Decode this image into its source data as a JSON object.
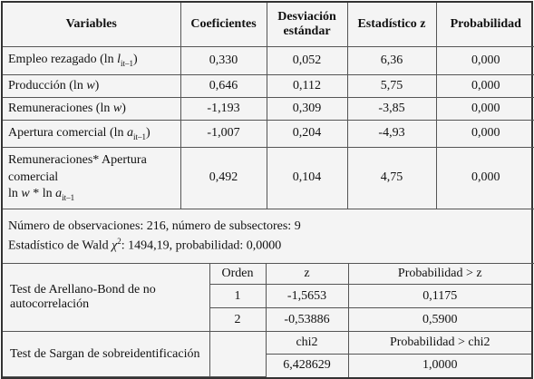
{
  "table": {
    "header": [
      "Variables",
      "Coeficientes",
      "Desviación estándar",
      "Estadístico z",
      "Probabilidad"
    ],
    "rows": [
      {
        "variable": [
          "Empleo rezagado (ln ",
          "l",
          "it–1",
          ")"
        ],
        "values": [
          "0,330",
          "0,052",
          "6,36",
          "0,000"
        ]
      },
      {
        "variable": [
          "Producción (ln ",
          "w",
          ")"
        ],
        "values": [
          "0,646",
          "0,112",
          "5,75",
          "0,000"
        ]
      },
      {
        "variable": [
          "Remuneraciones (ln ",
          "w",
          ")"
        ],
        "values": [
          "-1,193",
          "0,309",
          "-3,85",
          "0,000"
        ]
      },
      {
        "variable": [
          "Apertura comercial (ln ",
          "a",
          "it–1",
          ")"
        ],
        "values": [
          "-1,007",
          "0,204",
          "-4,93",
          "0,000"
        ]
      },
      {
        "variable": [
          "Remuneraciones* Apertura comercial",
          "ln ",
          "w",
          " * ln ",
          "a",
          "it–1"
        ],
        "values": [
          "0,492",
          "0,104",
          "4,75",
          "0,000"
        ]
      }
    ],
    "notes": {
      "observations": "Número de observaciones: 216, número de subsectores: 9",
      "wald": [
        "Estadístico de Wald ",
        "χ",
        "2",
        ": 1494,19, probabilidad: 0,0000"
      ]
    }
  },
  "arellano_bond": {
    "label": "Test de Arellano-Bond de no autocorrelación",
    "header": [
      "Orden",
      "z",
      "Probabilidad > z"
    ],
    "rows": [
      [
        "1",
        "-1,5653",
        "0,1175"
      ],
      [
        "2",
        "-0,53886",
        "0,5900"
      ]
    ]
  },
  "sargan": {
    "label": "Test de Sargan de sobreidentificación",
    "header": [
      "chi2",
      "Probabilidad > chi2"
    ],
    "values": [
      "6,428629",
      "1,0000"
    ]
  }
}
